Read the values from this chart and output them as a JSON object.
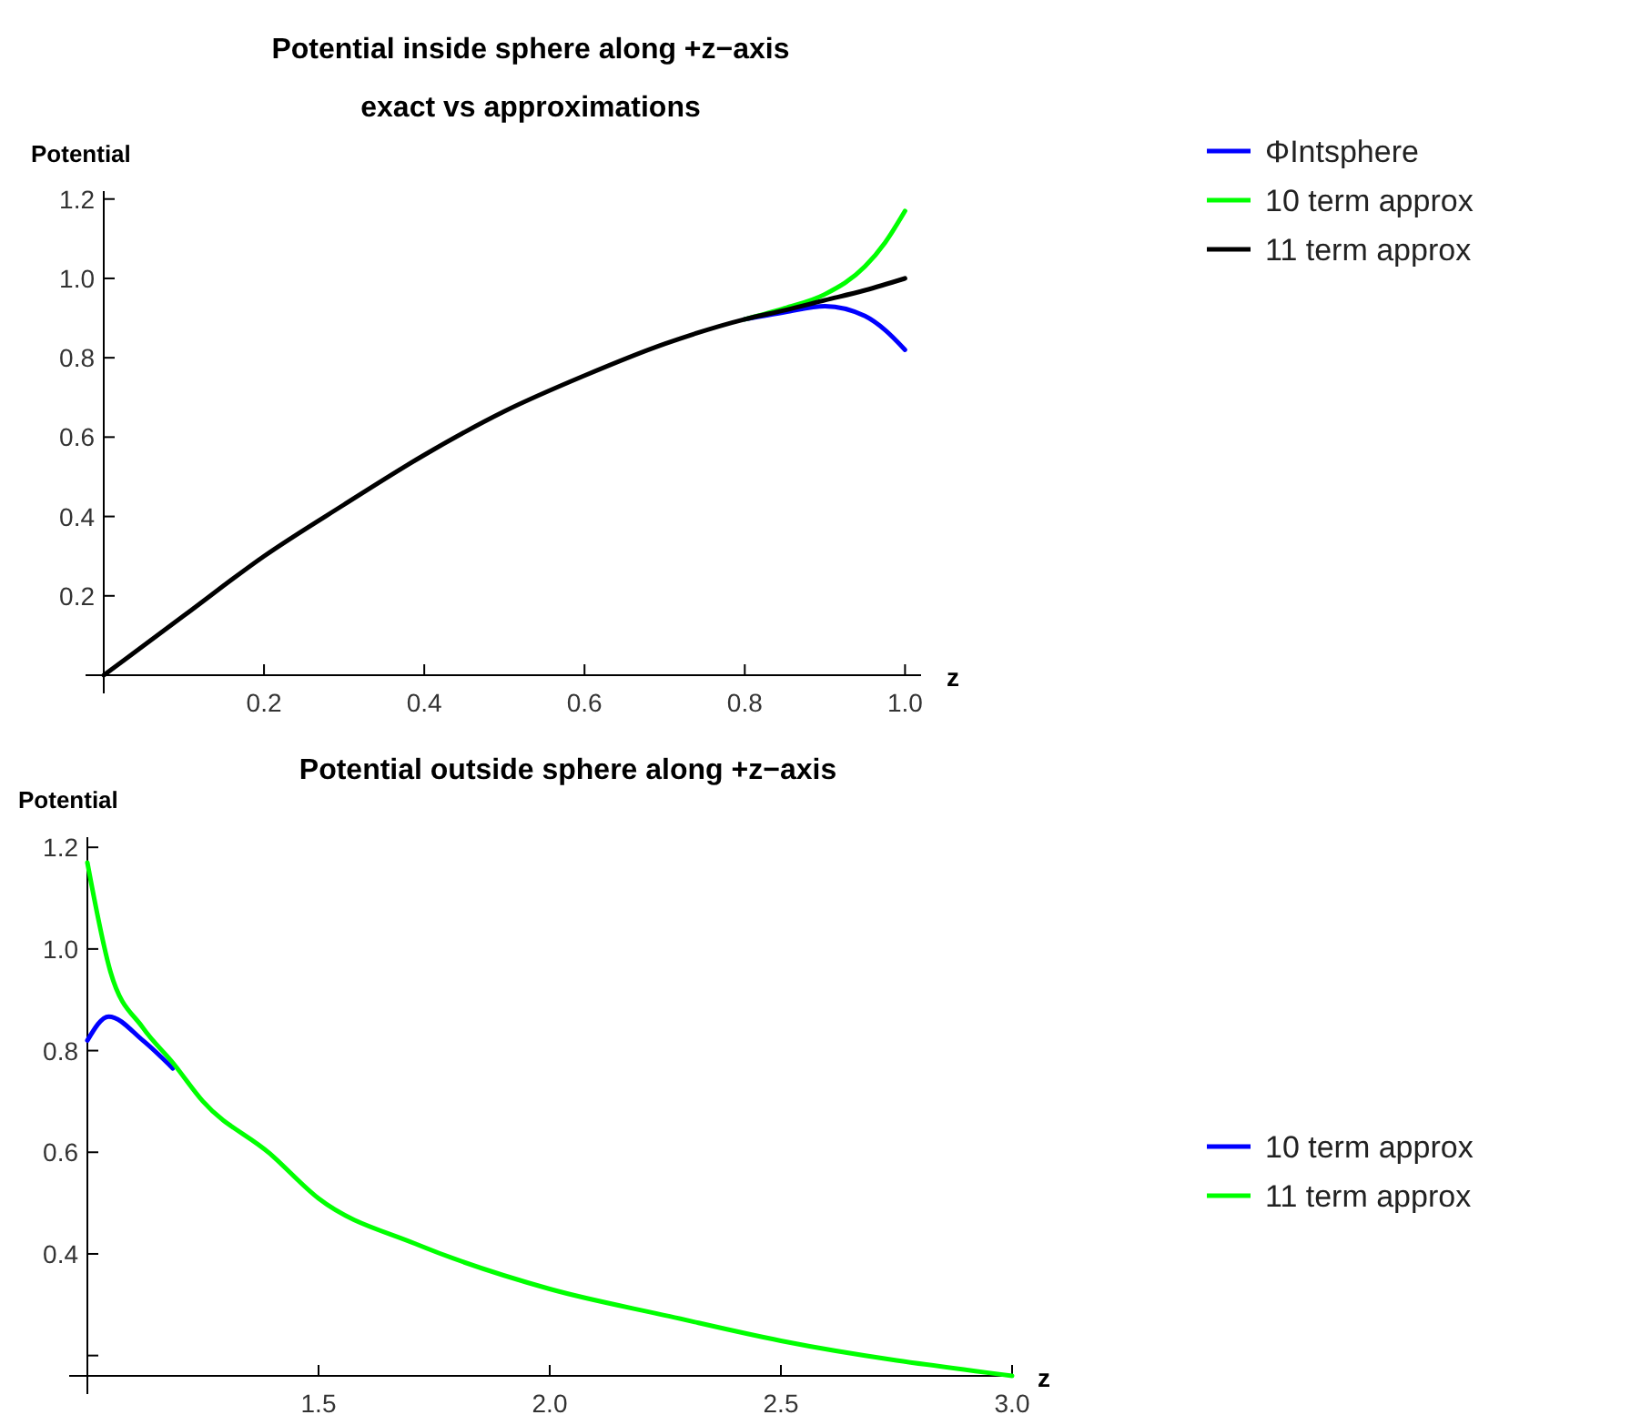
{
  "chart_data": [
    {
      "type": "line",
      "title": "Potential inside sphere along +z−axis",
      "subtitle": "exact vs approximations",
      "xlabel": "z",
      "ylabel": "Potential",
      "xlim": [
        0,
        1.02
      ],
      "ylim": [
        0,
        1.22
      ],
      "xticks": [
        {
          "value": 0.2,
          "label": "0.2"
        },
        {
          "value": 0.4,
          "label": "0.4"
        },
        {
          "value": 0.6,
          "label": "0.6"
        },
        {
          "value": 0.8,
          "label": "0.8"
        },
        {
          "value": 1,
          "label": "1.0"
        }
      ],
      "yticks": [
        {
          "value": 0.2,
          "label": "0.2"
        },
        {
          "value": 0.4,
          "label": "0.4"
        },
        {
          "value": 0.6,
          "label": "0.6"
        },
        {
          "value": 0.8,
          "label": "0.8"
        },
        {
          "value": 1,
          "label": "1.0"
        },
        {
          "value": 1.2,
          "label": "1.2"
        }
      ],
      "legend": "right",
      "line_style": "solid",
      "series": [
        {
          "name": "ΦIntsphere",
          "color": "#0000ff",
          "x": [
            0.8,
            0.85,
            0.9,
            0.95,
            0.975,
            1.0
          ],
          "values": [
            0.897,
            0.915,
            0.93,
            0.905,
            0.87,
            0.82
          ]
        },
        {
          "name": "10 term approx",
          "color": "#00ff00",
          "x": [
            0.8,
            0.85,
            0.9,
            0.95,
            0.975,
            1.0
          ],
          "values": [
            0.897,
            0.925,
            0.96,
            1.03,
            1.09,
            1.17
          ]
        },
        {
          "name": "11 term approx",
          "color": "#000000",
          "x": [
            0,
            0.1,
            0.2,
            0.3,
            0.4,
            0.5,
            0.6,
            0.7,
            0.8,
            0.85,
            0.9,
            0.95,
            1.0
          ],
          "values": [
            0,
            0.15,
            0.3,
            0.43,
            0.555,
            0.665,
            0.755,
            0.835,
            0.897,
            0.92,
            0.945,
            0.97,
            1.0
          ]
        }
      ]
    },
    {
      "type": "line",
      "title": "Potential outside sphere along +z−axis",
      "xlabel": "z",
      "ylabel": "Potential",
      "xlim": [
        1,
        3.0
      ],
      "ylim": [
        0.16,
        1.22
      ],
      "xticks": [
        {
          "value": 1.5,
          "label": "1.5"
        },
        {
          "value": 2,
          "label": "2.0"
        },
        {
          "value": 2.5,
          "label": "2.5"
        },
        {
          "value": 3,
          "label": "3.0"
        }
      ],
      "yticks": [
        {
          "value": 0.2,
          "label": null
        },
        {
          "value": 0.4,
          "label": "0.4"
        },
        {
          "value": 0.6,
          "label": "0.6"
        },
        {
          "value": 0.8,
          "label": "0.8"
        },
        {
          "value": 1,
          "label": "1.0"
        },
        {
          "value": 1.2,
          "label": "1.2"
        }
      ],
      "legend": "right",
      "line_style": "solid",
      "series": [
        {
          "name": "10 term approx",
          "color": "#0000ff",
          "x": [
            1,
            1.046,
            1.12,
            1.185
          ],
          "values": [
            0.82,
            0.867,
            0.82,
            0.765
          ]
        },
        {
          "name": "11 term approx",
          "color": "#00ff00",
          "x": [
            1,
            1.05,
            1.12,
            1.185,
            1.25,
            1.394,
            1.5,
            1.709,
            2.0,
            2.26,
            2.5,
            3.0
          ],
          "values": [
            1.17,
            0.955,
            0.845,
            0.776,
            0.7,
            0.598,
            0.509,
            0.42,
            0.331,
            0.277,
            0.229,
            0.16
          ]
        }
      ]
    }
  ]
}
